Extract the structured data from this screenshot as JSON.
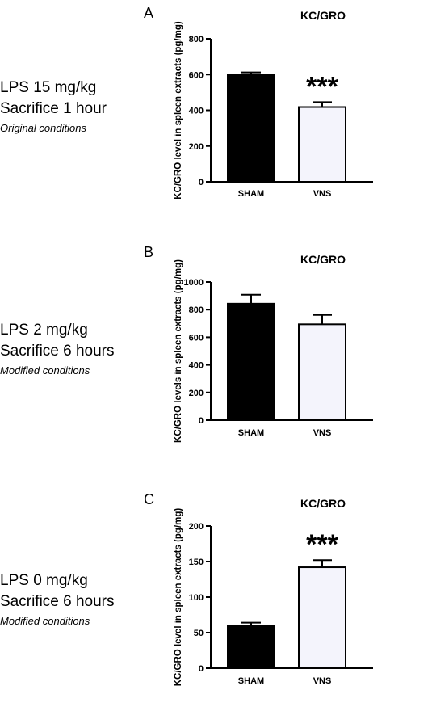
{
  "chart_data": [
    {
      "panel_letter": "A",
      "condition": {
        "line1": "LPS 15 mg/kg",
        "line2": "Sacrifice 1 hour",
        "line3": "Original conditions"
      },
      "type": "bar",
      "title": "KC/GRO",
      "ylabel": "KC/GRO level in spleen extracts (pg/mg)",
      "xlabel": "",
      "categories": [
        "SHAM",
        "VNS"
      ],
      "values": [
        598,
        418
      ],
      "errors": [
        14,
        28
      ],
      "bar_colors": [
        "#000000",
        "#f4f4fc"
      ],
      "ylim": [
        0,
        800
      ],
      "yticks": [
        "0",
        "200",
        "400",
        "600",
        "800"
      ],
      "significance": [
        "",
        "***"
      ],
      "grid": false
    },
    {
      "panel_letter": "B",
      "condition": {
        "line1": "LPS 2 mg/kg",
        "line2": "Sacrifice 6 hours",
        "line3": "Modified conditions"
      },
      "type": "bar",
      "title": "KC/GRO",
      "ylabel": "KC/GRO levels in spleen extracts (pg/mg)",
      "xlabel": "",
      "categories": [
        "SHAM",
        "VNS"
      ],
      "values": [
        843,
        694
      ],
      "errors": [
        65,
        68
      ],
      "bar_colors": [
        "#000000",
        "#f4f4fc"
      ],
      "ylim": [
        0,
        1000
      ],
      "yticks": [
        "0",
        "200",
        "400",
        "600",
        "800",
        "1000"
      ],
      "significance": [
        "",
        ""
      ],
      "grid": false
    },
    {
      "panel_letter": "C",
      "condition": {
        "line1": "LPS 0 mg/kg",
        "line2": "Sacrifice 6 hours",
        "line3": "Modified conditions"
      },
      "type": "bar",
      "title": "KC/GRO",
      "ylabel": "KC/GRO level in spleen extracts (pg/mg)",
      "xlabel": "",
      "categories": [
        "SHAM",
        "VNS"
      ],
      "values": [
        60,
        142
      ],
      "errors": [
        4,
        10
      ],
      "bar_colors": [
        "#000000",
        "#f4f4fc"
      ],
      "ylim": [
        0,
        200
      ],
      "yticks": [
        "0",
        "50",
        "100",
        "150",
        "200"
      ],
      "significance": [
        "",
        "***"
      ],
      "grid": false
    }
  ]
}
